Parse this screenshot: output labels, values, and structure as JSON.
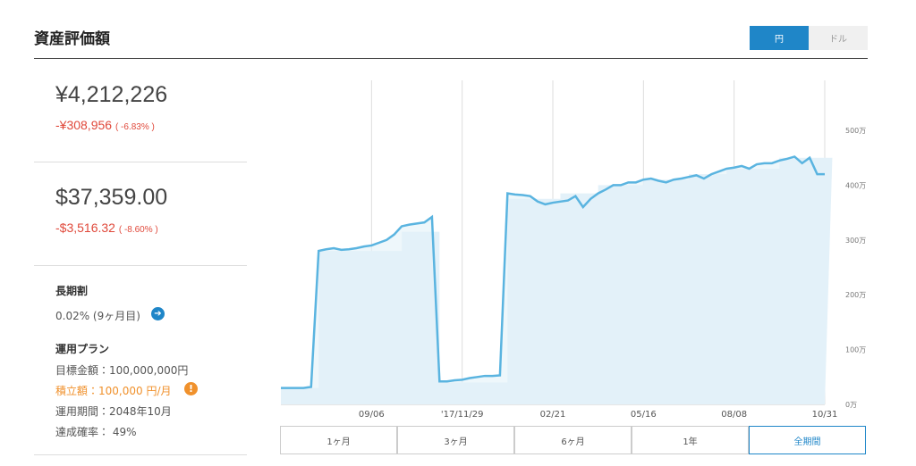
{
  "header": {
    "title": "資産評価額",
    "currency_buttons": [
      "円",
      "ドル"
    ]
  },
  "summary": {
    "yen": {
      "total": "¥4,212,226",
      "change": "-¥308,956",
      "percent": "( -6.83% )"
    },
    "usd": {
      "total": "$37,359.00",
      "change": "-$3,516.32",
      "percent": "( -8.60% )"
    }
  },
  "discount": {
    "label": "長期割",
    "value": "0.02% (9ヶ月目)"
  },
  "plan": {
    "label": "運用プラン",
    "rows": [
      "目標金額：100,000,000円",
      "積立額：100,000 円/月",
      "運用期間：2048年10月",
      "達成確率： 49%"
    ]
  },
  "range_buttons": [
    "1ヶ月",
    "3ヶ月",
    "6ヶ月",
    "1年",
    "全期間"
  ],
  "chart_data": {
    "type": "line",
    "categories": [
      null,
      null,
      null,
      null,
      null,
      null,
      null,
      null,
      null,
      null,
      null,
      null,
      "09/06",
      null,
      null,
      null,
      null,
      null,
      null,
      null,
      null,
      null,
      null,
      null,
      "'17/11/29",
      null,
      null,
      null,
      null,
      null,
      null,
      null,
      null,
      null,
      null,
      null,
      "02/21",
      null,
      null,
      null,
      null,
      null,
      null,
      null,
      null,
      null,
      null,
      null,
      "05/16",
      null,
      null,
      null,
      null,
      null,
      null,
      null,
      null,
      null,
      null,
      null,
      "08/08",
      null,
      null,
      null,
      null,
      null,
      null,
      null,
      null,
      null,
      null,
      null,
      "10/31"
    ],
    "series": [
      {
        "color": "#5ab4e0",
        "values": [
          30,
          30,
          30,
          30,
          32,
          280,
          283,
          285,
          282,
          283,
          285,
          288,
          290,
          295,
          300,
          310,
          325,
          328,
          330,
          332,
          342,
          42,
          42,
          44,
          45,
          48,
          50,
          52,
          52,
          53,
          385,
          383,
          382,
          380,
          370,
          365,
          368,
          370,
          372,
          380,
          360,
          375,
          385,
          392,
          400,
          400,
          405,
          405,
          410,
          412,
          408,
          405,
          410,
          412,
          415,
          418,
          412,
          420,
          425,
          430,
          432,
          435,
          430,
          438,
          440,
          440,
          445,
          448,
          452,
          440,
          450,
          420,
          420
        ]
      },
      {
        "color": "#e3f1f9",
        "values": [
          30,
          30,
          30,
          30,
          30,
          280,
          280,
          280,
          280,
          280,
          280,
          280,
          280,
          280,
          280,
          280,
          315,
          315,
          315,
          315,
          315,
          40,
          40,
          40,
          40,
          40,
          40,
          40,
          40,
          40,
          375,
          375,
          375,
          375,
          375,
          375,
          375,
          385,
          385,
          385,
          385,
          385,
          400,
          400,
          400,
          400,
          400,
          400,
          410,
          410,
          410,
          410,
          410,
          410,
          420,
          420,
          420,
          420,
          420,
          430,
          430,
          430,
          430,
          430,
          430,
          430,
          450,
          450,
          450,
          450,
          450,
          450,
          450
        ]
      }
    ],
    "ylim": [
      0,
      600
    ],
    "yticks": [
      {
        "value": 0,
        "label": "0万"
      },
      {
        "value": 100,
        "label": "100万"
      },
      {
        "value": 200,
        "label": "200万"
      },
      {
        "value": 300,
        "label": "300万"
      },
      {
        "value": 400,
        "label": "400万"
      },
      {
        "value": 500,
        "label": "500万"
      }
    ],
    "grid": true
  }
}
